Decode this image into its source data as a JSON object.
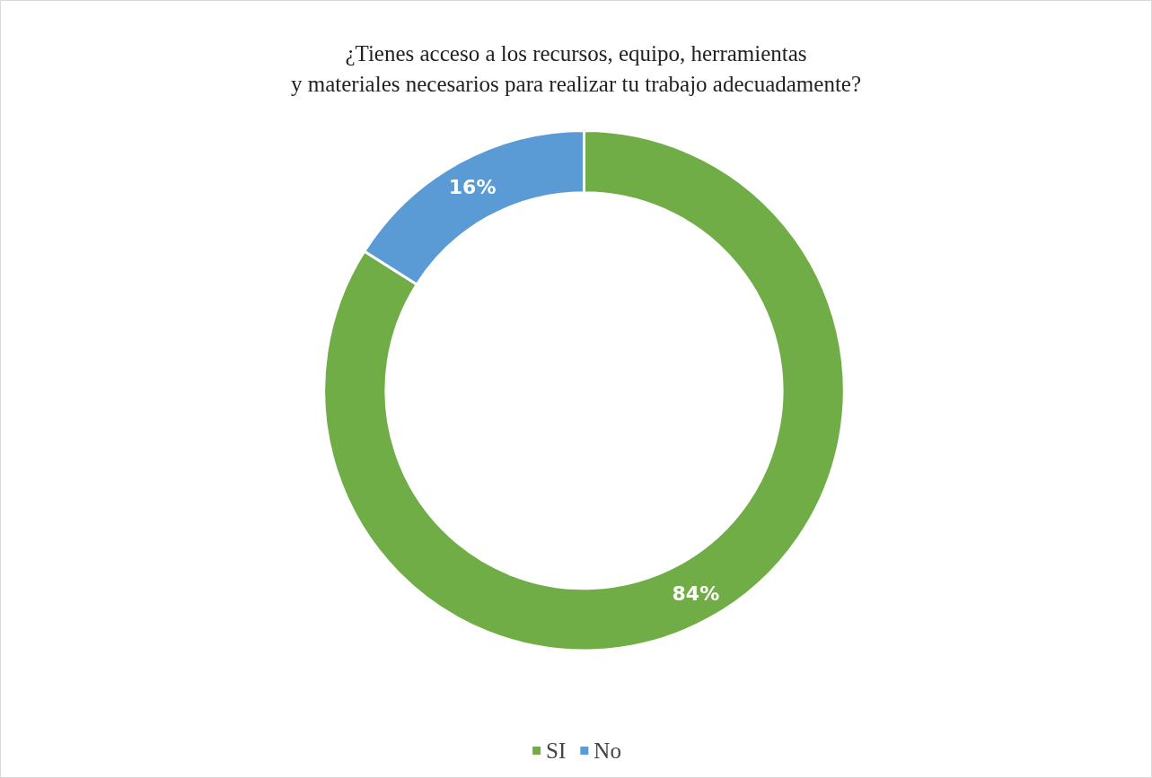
{
  "chart_data": {
    "type": "donut",
    "title": "¿Tienes acceso a los recursos, equipo, herramientas\ny materiales necesarios para realizar tu trabajo adecuadamente?",
    "categories": [
      "SI",
      "No"
    ],
    "values": [
      84,
      16
    ],
    "colors": [
      "#70ad47",
      "#5b9bd5"
    ],
    "value_labels": [
      "84%",
      "16%"
    ],
    "legend": "bottom"
  }
}
